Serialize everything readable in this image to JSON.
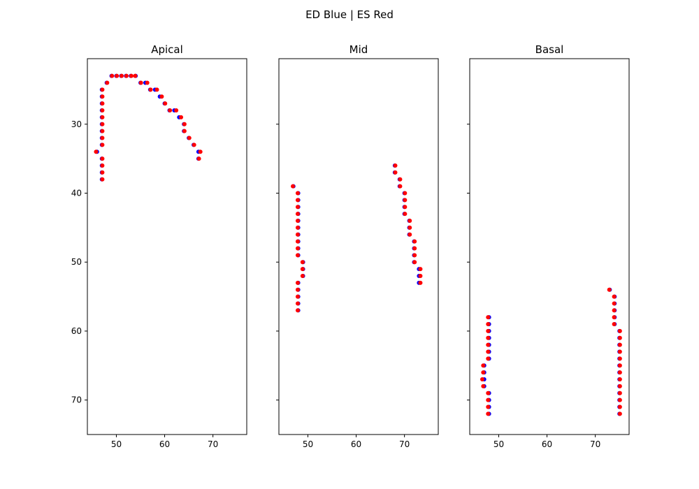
{
  "chart_data": {
    "type": "scatter",
    "title": "ED Blue | ES Red",
    "series": [
      {
        "color": "#0000ff"
      },
      {
        "color": "#ff0000"
      }
    ],
    "sharey": true,
    "y_inverted": true,
    "ylim": [
      75,
      20.5
    ],
    "yticks": [
      30,
      40,
      50,
      60,
      70
    ],
    "panels": [
      {
        "title": "Apical",
        "xlim": [
          44,
          77
        ],
        "xticks": [
          50,
          60,
          70
        ],
        "ed": [
          [
            46,
            34
          ],
          [
            47,
            25
          ],
          [
            47,
            26
          ],
          [
            47,
            27
          ],
          [
            47,
            28
          ],
          [
            47,
            29
          ],
          [
            47,
            30
          ],
          [
            47,
            31
          ],
          [
            47,
            32
          ],
          [
            47,
            33
          ],
          [
            47,
            35
          ],
          [
            47,
            36
          ],
          [
            47,
            37
          ],
          [
            47,
            38
          ],
          [
            48,
            24
          ],
          [
            49,
            23
          ],
          [
            50,
            23
          ],
          [
            51,
            23
          ],
          [
            52,
            23
          ],
          [
            53,
            23
          ],
          [
            54,
            23
          ],
          [
            55,
            24
          ],
          [
            56,
            24
          ],
          [
            57,
            25
          ],
          [
            58,
            25
          ],
          [
            59,
            26
          ],
          [
            60,
            27
          ],
          [
            61,
            28
          ],
          [
            62,
            28
          ],
          [
            63,
            29
          ],
          [
            64,
            30
          ],
          [
            64,
            31
          ],
          [
            65,
            32
          ],
          [
            66,
            33
          ],
          [
            67,
            34
          ],
          [
            67,
            35
          ]
        ],
        "es": [
          [
            45.8,
            34
          ],
          [
            47.1,
            25
          ],
          [
            47.1,
            26
          ],
          [
            47.1,
            27
          ],
          [
            47.1,
            28
          ],
          [
            47.1,
            29
          ],
          [
            47.1,
            30
          ],
          [
            47.1,
            31
          ],
          [
            47.1,
            32
          ],
          [
            47.1,
            33
          ],
          [
            47.1,
            35
          ],
          [
            47.1,
            36
          ],
          [
            47.1,
            37
          ],
          [
            47.1,
            38
          ],
          [
            48.1,
            24
          ],
          [
            49.1,
            23
          ],
          [
            50.1,
            23
          ],
          [
            51.1,
            23
          ],
          [
            52.1,
            23
          ],
          [
            53.1,
            23
          ],
          [
            53.9,
            23
          ],
          [
            55.1,
            24
          ],
          [
            56.4,
            24
          ],
          [
            57.1,
            25
          ],
          [
            58.4,
            25
          ],
          [
            59.4,
            26
          ],
          [
            60.1,
            27
          ],
          [
            61.1,
            28
          ],
          [
            62.4,
            28
          ],
          [
            63.4,
            29
          ],
          [
            64.1,
            30
          ],
          [
            64.1,
            31
          ],
          [
            65.1,
            32
          ],
          [
            66.1,
            33
          ],
          [
            67.4,
            34
          ],
          [
            67.1,
            35
          ]
        ]
      },
      {
        "title": "Mid",
        "xlim": [
          44,
          77
        ],
        "xticks": [
          50,
          60,
          70
        ],
        "ed": [
          [
            47,
            39
          ],
          [
            48,
            40
          ],
          [
            48,
            41
          ],
          [
            48,
            42
          ],
          [
            48,
            43
          ],
          [
            48,
            44
          ],
          [
            48,
            45
          ],
          [
            48,
            46
          ],
          [
            48,
            47
          ],
          [
            48,
            48
          ],
          [
            48,
            49
          ],
          [
            49,
            50
          ],
          [
            49,
            51
          ],
          [
            49,
            52
          ],
          [
            48,
            53
          ],
          [
            48,
            54
          ],
          [
            48,
            55
          ],
          [
            48,
            56
          ],
          [
            48,
            57
          ],
          [
            68,
            36
          ],
          [
            68,
            37
          ],
          [
            69,
            38
          ],
          [
            69,
            39
          ],
          [
            70,
            40
          ],
          [
            70,
            41
          ],
          [
            70,
            42
          ],
          [
            70,
            43
          ],
          [
            71,
            44
          ],
          [
            71,
            45
          ],
          [
            71,
            46
          ],
          [
            72,
            47
          ],
          [
            72,
            48
          ],
          [
            72,
            49
          ],
          [
            72,
            50
          ],
          [
            73,
            51
          ],
          [
            73,
            52
          ],
          [
            73,
            53
          ]
        ],
        "es": [
          [
            46.9,
            39
          ],
          [
            47.9,
            40
          ],
          [
            47.9,
            41
          ],
          [
            47.9,
            42
          ],
          [
            47.9,
            43
          ],
          [
            47.9,
            44
          ],
          [
            47.9,
            45
          ],
          [
            47.9,
            46
          ],
          [
            47.9,
            47
          ],
          [
            47.9,
            48
          ],
          [
            47.9,
            49
          ],
          [
            48.9,
            50
          ],
          [
            48.9,
            51
          ],
          [
            48.9,
            52
          ],
          [
            47.9,
            53
          ],
          [
            47.9,
            54
          ],
          [
            47.9,
            55
          ],
          [
            47.9,
            56
          ],
          [
            47.9,
            57
          ],
          [
            68.1,
            36
          ],
          [
            68.1,
            37
          ],
          [
            69.1,
            38
          ],
          [
            69.1,
            39
          ],
          [
            70.1,
            40
          ],
          [
            70.1,
            41
          ],
          [
            70.1,
            42
          ],
          [
            70.1,
            43
          ],
          [
            71.1,
            44
          ],
          [
            71.1,
            45
          ],
          [
            71.1,
            46
          ],
          [
            72.1,
            47
          ],
          [
            72.1,
            48
          ],
          [
            72.1,
            49
          ],
          [
            72.1,
            50
          ],
          [
            73.3,
            51
          ],
          [
            73.3,
            52
          ],
          [
            73.3,
            53
          ]
        ]
      },
      {
        "title": "Basal",
        "xlim": [
          44,
          77
        ],
        "xticks": [
          50,
          60,
          70
        ],
        "ed": [
          [
            48,
            58
          ],
          [
            48,
            59
          ],
          [
            48,
            60
          ],
          [
            48,
            61
          ],
          [
            48,
            62
          ],
          [
            48,
            63
          ],
          [
            48,
            64
          ],
          [
            47,
            65
          ],
          [
            47,
            66
          ],
          [
            47,
            67
          ],
          [
            47,
            68
          ],
          [
            48,
            69
          ],
          [
            48,
            70
          ],
          [
            48,
            71
          ],
          [
            48,
            72
          ],
          [
            73,
            54
          ],
          [
            74,
            55
          ],
          [
            74,
            56
          ],
          [
            74,
            57
          ],
          [
            74,
            58
          ],
          [
            74,
            59
          ],
          [
            75,
            60
          ],
          [
            75,
            61
          ],
          [
            75,
            62
          ],
          [
            75,
            63
          ],
          [
            75,
            64
          ],
          [
            75,
            65
          ],
          [
            75,
            66
          ],
          [
            75,
            67
          ],
          [
            75,
            68
          ],
          [
            75,
            69
          ],
          [
            75,
            70
          ],
          [
            75,
            71
          ],
          [
            75,
            72
          ]
        ],
        "es": [
          [
            47.8,
            58
          ],
          [
            47.8,
            59
          ],
          [
            47.8,
            60
          ],
          [
            47.8,
            61
          ],
          [
            47.8,
            62
          ],
          [
            47.8,
            63
          ],
          [
            47.8,
            64
          ],
          [
            46.8,
            65
          ],
          [
            46.8,
            66
          ],
          [
            46.6,
            67
          ],
          [
            46.8,
            68
          ],
          [
            47.8,
            69
          ],
          [
            47.8,
            70
          ],
          [
            47.8,
            71
          ],
          [
            47.8,
            72
          ],
          [
            72.9,
            54
          ],
          [
            73.9,
            55
          ],
          [
            73.9,
            56
          ],
          [
            73.9,
            57
          ],
          [
            73.9,
            58
          ],
          [
            73.9,
            59
          ],
          [
            75.1,
            60
          ],
          [
            75.1,
            61
          ],
          [
            75.1,
            62
          ],
          [
            75.1,
            63
          ],
          [
            75.1,
            64
          ],
          [
            75.1,
            65
          ],
          [
            75.1,
            66
          ],
          [
            75.1,
            67
          ],
          [
            75.1,
            68
          ],
          [
            75.1,
            69
          ],
          [
            75.1,
            70
          ],
          [
            75.1,
            71
          ],
          [
            75.1,
            72
          ]
        ]
      }
    ]
  }
}
